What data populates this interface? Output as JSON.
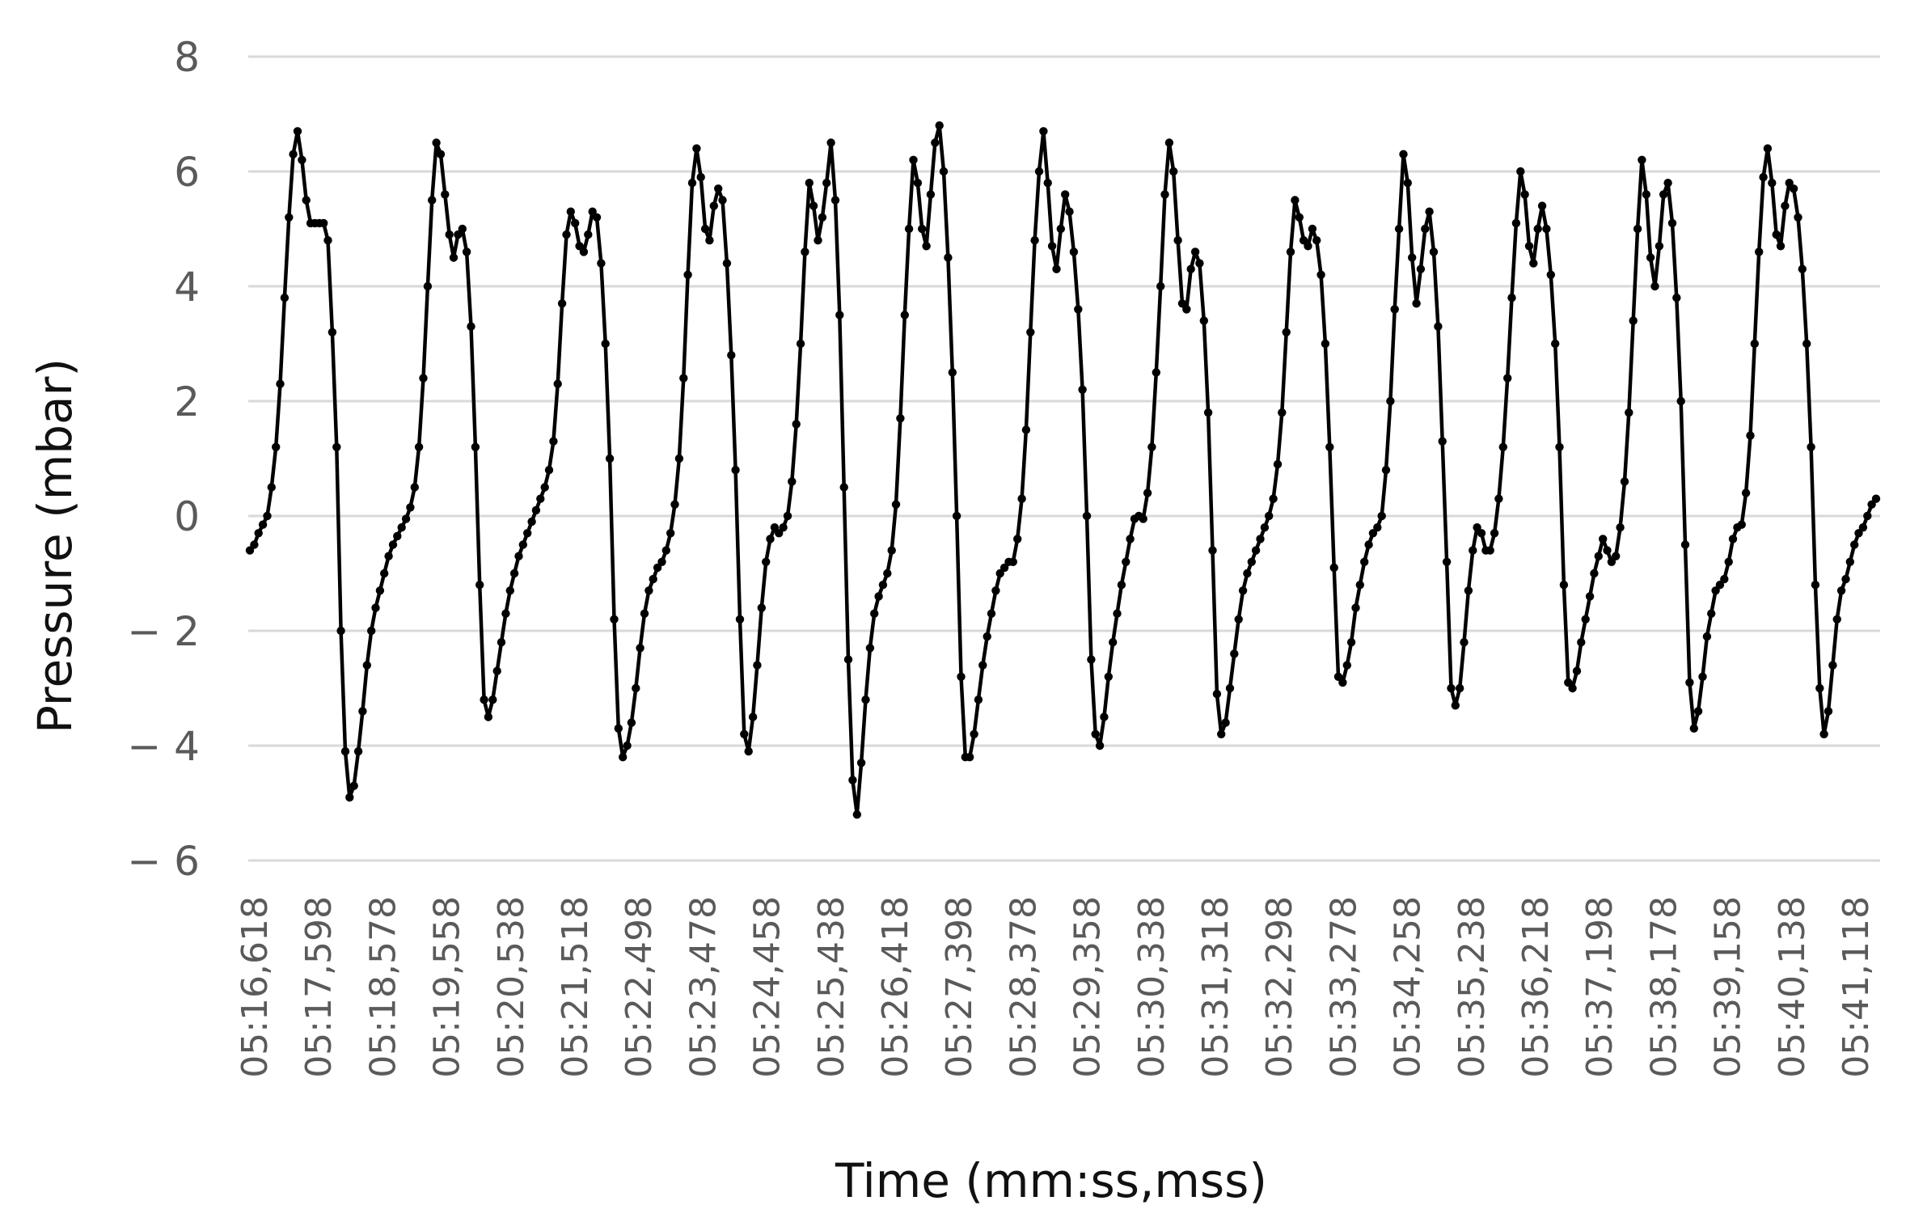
{
  "chart_data": {
    "type": "line",
    "xlabel": "Time (mm:ss,mss)",
    "ylabel": "Pressure (mbar)",
    "ylim": [
      -6,
      8
    ],
    "yticks": [
      8,
      6,
      4,
      2,
      0,
      -2,
      -4,
      -6
    ],
    "ytick_labels": [
      "8",
      "6",
      "4",
      "2",
      "0",
      "− 2",
      "− 4",
      "− 6"
    ],
    "x_tick_labels": [
      "05:16,618",
      "05:17,598",
      "05:18,578",
      "05:19,558",
      "05:20,538",
      "05:21,518",
      "05:22,498",
      "05:23,478",
      "05:24,458",
      "05:25,438",
      "05:26,418",
      "05:27,398",
      "05:28,378",
      "05:29,358",
      "05:30,338",
      "05:31,318",
      "05:32,298",
      "05:33,278",
      "05:34,258",
      "05:35,238",
      "05:36,218",
      "05:37,198",
      "05:38,178",
      "05:39,158",
      "05:40,138",
      "05:41,118"
    ],
    "grid": true,
    "legend": "none",
    "series_color": "#000000",
    "series": [
      {
        "values": [
          -0.6,
          -0.5,
          -0.3,
          -0.15,
          0,
          0.5,
          1.2,
          2.3,
          3.8,
          5.2,
          6.3,
          6.7,
          6.2,
          5.5,
          5.1,
          5.1,
          5.1,
          5.1,
          4.8,
          3.2,
          1.2,
          -2,
          -4.1,
          -4.9,
          -4.7,
          -4.1,
          -3.4,
          -2.6,
          -2,
          -1.6,
          -1.3,
          -1,
          -0.7,
          -0.5,
          -0.35,
          -0.2,
          -0.05,
          0.15,
          0.5,
          1.2,
          2.4,
          4,
          5.5,
          6.5,
          6.3,
          5.6,
          4.9,
          4.5,
          4.9,
          5,
          4.6,
          3.3,
          1.2,
          -1.2,
          -3.2,
          -3.5,
          -3.2,
          -2.7,
          -2.2,
          -1.7,
          -1.3,
          -1,
          -0.7,
          -0.5,
          -0.3,
          -0.1,
          0.1,
          0.3,
          0.5,
          0.8,
          1.3,
          2.3,
          3.7,
          4.9,
          5.3,
          5.1,
          4.7,
          4.6,
          4.9,
          5.3,
          5.2,
          4.4,
          3,
          1,
          -1.8,
          -3.7,
          -4.2,
          -4,
          -3.6,
          -3,
          -2.3,
          -1.7,
          -1.3,
          -1.1,
          -0.9,
          -0.8,
          -0.6,
          -0.3,
          0.2,
          1,
          2.4,
          4.2,
          5.8,
          6.4,
          5.9,
          5,
          4.8,
          5.4,
          5.7,
          5.5,
          4.4,
          2.8,
          0.8,
          -1.8,
          -3.8,
          -4.1,
          -3.5,
          -2.6,
          -1.6,
          -0.8,
          -0.4,
          -0.2,
          -0.3,
          -0.2,
          0,
          0.6,
          1.6,
          3,
          4.6,
          5.8,
          5.4,
          4.8,
          5.2,
          5.8,
          6.5,
          5.5,
          3.5,
          0.5,
          -2.5,
          -4.6,
          -5.2,
          -4.3,
          -3.2,
          -2.3,
          -1.7,
          -1.4,
          -1.2,
          -1,
          -0.6,
          0.2,
          1.7,
          3.5,
          5,
          6.2,
          5.8,
          5,
          4.7,
          5.6,
          6.5,
          6.8,
          6,
          4.5,
          2.5,
          0,
          -2.8,
          -4.2,
          -4.2,
          -3.8,
          -3.2,
          -2.6,
          -2.1,
          -1.7,
          -1.3,
          -1,
          -0.9,
          -0.8,
          -0.8,
          -0.4,
          0.3,
          1.5,
          3.2,
          4.8,
          6,
          6.7,
          5.8,
          4.7,
          4.3,
          5,
          5.6,
          5.3,
          4.6,
          3.6,
          2.2,
          0,
          -2.5,
          -3.8,
          -4,
          -3.5,
          -2.8,
          -2.2,
          -1.7,
          -1.2,
          -0.8,
          -0.4,
          -0.05,
          0,
          -0.05,
          0.4,
          1.2,
          2.5,
          4,
          5.6,
          6.5,
          6,
          4.8,
          3.7,
          3.6,
          4.3,
          4.6,
          4.4,
          3.4,
          1.8,
          -0.6,
          -3.1,
          -3.8,
          -3.6,
          -3,
          -2.4,
          -1.8,
          -1.3,
          -1,
          -0.8,
          -0.6,
          -0.4,
          -0.2,
          0,
          0.3,
          0.9,
          1.8,
          3.2,
          4.6,
          5.5,
          5.2,
          4.8,
          4.7,
          5,
          4.8,
          4.2,
          3,
          1.2,
          -0.9,
          -2.8,
          -2.9,
          -2.6,
          -2.2,
          -1.6,
          -1.2,
          -0.8,
          -0.5,
          -0.3,
          -0.2,
          0,
          0.8,
          2,
          3.6,
          5,
          6.3,
          5.8,
          4.5,
          3.7,
          4.3,
          5,
          5.3,
          4.6,
          3.3,
          1.3,
          -0.8,
          -3,
          -3.3,
          -3,
          -2.2,
          -1.3,
          -0.6,
          -0.2,
          -0.3,
          -0.6,
          -0.6,
          -0.3,
          0.3,
          1.2,
          2.4,
          3.8,
          5.1,
          6,
          5.6,
          4.7,
          4.4,
          5,
          5.4,
          5,
          4.2,
          3,
          1.2,
          -1.2,
          -2.9,
          -3,
          -2.7,
          -2.2,
          -1.8,
          -1.4,
          -1,
          -0.7,
          -0.4,
          -0.6,
          -0.8,
          -0.7,
          -0.2,
          0.6,
          1.8,
          3.4,
          5,
          6.2,
          5.6,
          4.5,
          4,
          4.7,
          5.6,
          5.8,
          5.1,
          3.8,
          2,
          -0.5,
          -2.9,
          -3.7,
          -3.4,
          -2.8,
          -2.1,
          -1.7,
          -1.3,
          -1.2,
          -1.1,
          -0.8,
          -0.4,
          -0.2,
          -0.15,
          0.4,
          1.4,
          3,
          4.6,
          5.9,
          6.4,
          5.8,
          4.9,
          4.7,
          5.4,
          5.8,
          5.7,
          5.2,
          4.3,
          3,
          1.2,
          -1.2,
          -3,
          -3.8,
          -3.4,
          -2.6,
          -1.8,
          -1.3,
          -1.1,
          -0.8,
          -0.5,
          -0.3,
          -0.2,
          0,
          0.2,
          0.3
        ]
      }
    ]
  }
}
